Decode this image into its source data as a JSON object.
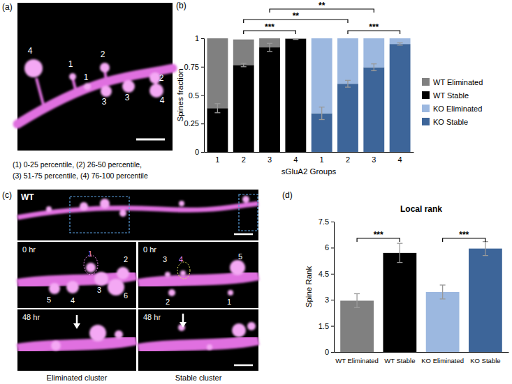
{
  "chart_data": [
    {
      "type": "bar",
      "stacked": true,
      "categories": [
        "1",
        "2",
        "3",
        "4",
        "1",
        "2",
        "3",
        "4"
      ],
      "x_label": "sGluA2 Groups",
      "y_label": "Spines fraction",
      "ylim": [
        0,
        1
      ],
      "yticks": [
        0,
        0.25,
        0.5,
        0.75,
        1
      ],
      "legend": "right",
      "series": [
        {
          "name": "WT Stable",
          "color": "#000000",
          "values": [
            0.385,
            0.765,
            0.92,
            0.995,
            null,
            null,
            null,
            null
          ],
          "errors": [
            0.04,
            0.015,
            0.035,
            0.005,
            null,
            null,
            null,
            null
          ]
        },
        {
          "name": "WT Eliminated",
          "color": "#808080",
          "values": [
            0.615,
            0.225,
            0.08,
            0.005,
            null,
            null,
            null,
            null
          ]
        },
        {
          "name": "KO Stable",
          "color": "#3d6599",
          "values": [
            null,
            null,
            null,
            null,
            0.34,
            0.6,
            0.745,
            0.95
          ],
          "errors": [
            null,
            null,
            null,
            null,
            0.055,
            0.03,
            0.03,
            0.01
          ]
        },
        {
          "name": "KO Eliminated",
          "color": "#9cb8e0",
          "values": [
            null,
            null,
            null,
            null,
            0.66,
            0.4,
            0.255,
            0.05
          ]
        }
      ],
      "annotations": [
        {
          "text": "***",
          "between": [
            1,
            3
          ]
        },
        {
          "text": "**",
          "between": [
            1,
            5
          ]
        },
        {
          "text": "**",
          "between": [
            2,
            6
          ]
        },
        {
          "text": "***",
          "between": [
            5,
            7
          ]
        }
      ]
    },
    {
      "type": "bar",
      "title": "Local rank",
      "categories": [
        "WT Eliminated",
        "WT Stable",
        "KO Eliminated",
        "KO Stable"
      ],
      "values": [
        2.95,
        5.7,
        3.45,
        5.95
      ],
      "errors": [
        0.4,
        0.55,
        0.4,
        0.4
      ],
      "colors": [
        "#808080",
        "#000000",
        "#9cb8e0",
        "#3d6599"
      ],
      "y_label": "Spine Rank",
      "ylim": [
        0,
        7.5
      ],
      "yticks": [
        0,
        1.5,
        3,
        4.5,
        6,
        7.5
      ],
      "annotations": [
        {
          "text": "***",
          "between": [
            0,
            1
          ]
        },
        {
          "text": "***",
          "between": [
            2,
            3
          ]
        }
      ]
    }
  ],
  "panel_labels": [
    "(a)",
    "(b)",
    "(c)",
    "(d)"
  ],
  "image_a": {
    "spine_labels": [
      "4",
      "1",
      "1",
      "2",
      "3",
      "3",
      "2",
      "4"
    ],
    "caption": [
      "(1) 0-25 percentile, (2) 26-50 percentile,",
      "(3) 51-75 percentile, (4) 76-100 percentile"
    ]
  },
  "image_c": {
    "genotype": "WT",
    "time_labels": [
      "0 hr",
      "0 hr",
      "48 hr",
      "48 hr"
    ],
    "eliminated_labels": [
      "1",
      "2",
      "3",
      "4",
      "5",
      "6"
    ],
    "stable_labels": [
      "3",
      "4",
      "5",
      "2",
      "1"
    ],
    "captions": [
      "Eliminated cluster",
      "Stable cluster"
    ]
  }
}
